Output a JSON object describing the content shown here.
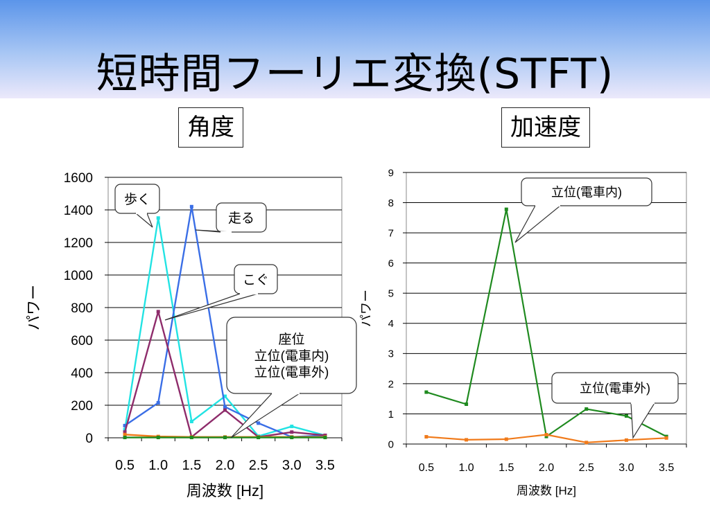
{
  "slide": {
    "title": "短時間フーリエ変換(STFT)",
    "panel_left_label": "角度",
    "panel_right_label": "加速度"
  },
  "chart_data": [
    {
      "type": "line",
      "ylabel": "パワー",
      "xlabel": "周波数 [Hz]",
      "categories": [
        "0.5",
        "1.0",
        "1.5",
        "2.0",
        "2.5",
        "3.0",
        "3.5"
      ],
      "ylim": [
        0,
        1600
      ],
      "yticks": [
        0,
        200,
        400,
        600,
        800,
        1000,
        1200,
        1400,
        1600
      ],
      "grid": true,
      "series": [
        {
          "values": [
            50,
            1350,
            100,
            255,
            10,
            70,
            15
          ],
          "color": "#22e3e3"
        },
        {
          "values": [
            75,
            215,
            1420,
            190,
            90,
            5,
            15
          ],
          "color": "#3a6ee6"
        },
        {
          "values": [
            35,
            775,
            5,
            170,
            5,
            35,
            15
          ],
          "color": "#8e2c6b"
        },
        {
          "values": [
            20,
            8,
            5,
            5,
            5,
            5,
            5
          ],
          "color": "#f07a1a"
        },
        {
          "values": [
            2,
            2,
            2,
            2,
            2,
            2,
            2
          ],
          "color": "#1f8a1f"
        }
      ],
      "annotations": [
        {
          "text": "歩く"
        },
        {
          "text": "走る"
        },
        {
          "text": "こぐ"
        },
        {
          "lines": [
            "座位",
            "立位(電車内)",
            "立位(電車外)"
          ]
        }
      ]
    },
    {
      "type": "line",
      "ylabel": "パワー",
      "xlabel": "周波数 [Hz]",
      "categories": [
        "0.5",
        "1.0",
        "1.5",
        "2.0",
        "2.5",
        "3.0",
        "3.5"
      ],
      "ylim": [
        0,
        9
      ],
      "yticks": [
        0,
        1,
        2,
        3,
        4,
        5,
        6,
        7,
        8,
        9
      ],
      "grid": true,
      "series": [
        {
          "values": [
            1.72,
            1.32,
            7.78,
            0.25,
            1.16,
            0.93,
            0.25
          ],
          "color": "#1f8a1f"
        },
        {
          "values": [
            0.24,
            0.14,
            0.16,
            0.31,
            0.05,
            0.13,
            0.2
          ],
          "color": "#f07a1a"
        }
      ],
      "annotations": [
        {
          "text": "立位(電車内)"
        },
        {
          "text": "立位(電車外)"
        }
      ]
    }
  ]
}
